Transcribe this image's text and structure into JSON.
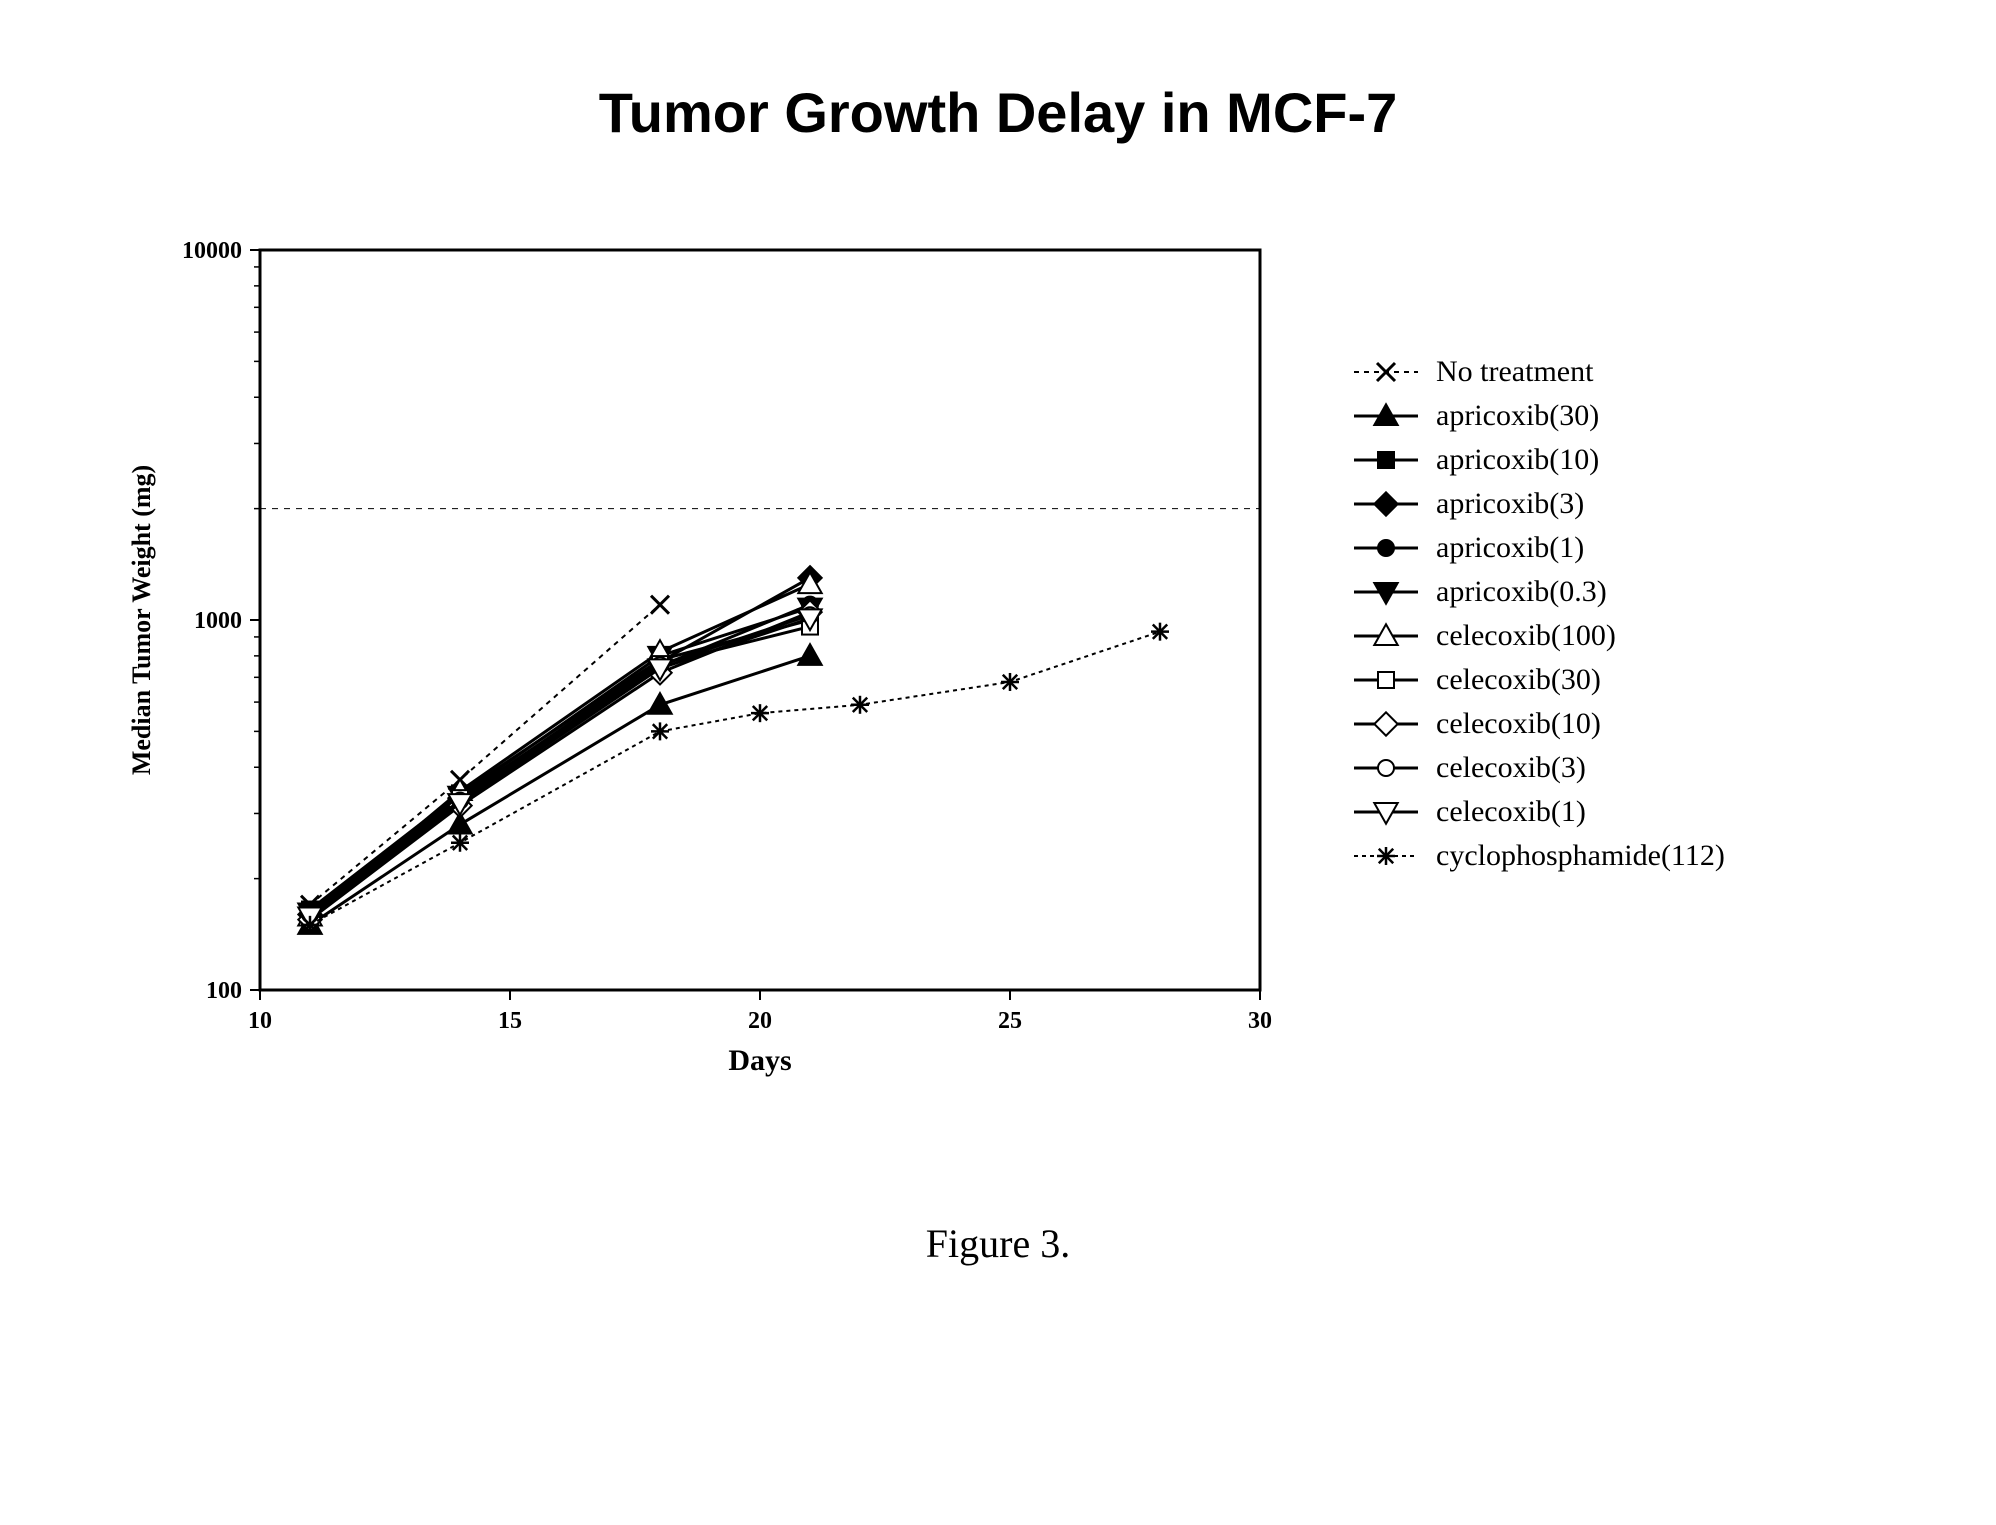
{
  "title": "Tumor Growth Delay in MCF-7",
  "figcaption": "Figure 3.",
  "chart": {
    "type": "line",
    "background_color": "#ffffff",
    "frame_color": "#000000",
    "frame_width": 3,
    "tick_len": 10,
    "reference_line": {
      "y": 2000,
      "dash": "6,6",
      "color": "#000000",
      "width": 1
    },
    "x": {
      "label": "Days",
      "label_fontsize": 30,
      "min": 10,
      "max": 30,
      "ticks": [
        10,
        15,
        20,
        25,
        30
      ],
      "tick_fontsize": 24
    },
    "y": {
      "label": "Median Tumor Weight (mg)",
      "label_fontsize": 26,
      "scale": "log",
      "min": 100,
      "max": 10000,
      "ticks": [
        100,
        1000,
        10000
      ],
      "tick_labels": [
        "100",
        "1000",
        "10000"
      ],
      "tick_fontsize": 24
    },
    "series": [
      {
        "name": "No treatment",
        "color": "#000000",
        "line_dash": "5,5",
        "line_width": 2,
        "marker": "x",
        "marker_fill": "#000000",
        "marker_size": 9,
        "x": [
          11,
          14,
          18
        ],
        "y": [
          170,
          370,
          1100
        ]
      },
      {
        "name": "apricoxib(30)",
        "color": "#000000",
        "line_dash": null,
        "line_width": 3,
        "marker": "triangle-up",
        "marker_fill": "#000000",
        "marker_size": 9,
        "x": [
          11,
          14,
          18,
          21
        ],
        "y": [
          150,
          280,
          590,
          800
        ]
      },
      {
        "name": "apricoxib(10)",
        "color": "#000000",
        "line_dash": null,
        "line_width": 3,
        "marker": "square",
        "marker_fill": "#000000",
        "marker_size": 8,
        "x": [
          11,
          14,
          18,
          21
        ],
        "y": [
          165,
          340,
          780,
          1000
        ]
      },
      {
        "name": "apricoxib(3)",
        "color": "#000000",
        "line_dash": null,
        "line_width": 3,
        "marker": "diamond",
        "marker_fill": "#000000",
        "marker_size": 9,
        "x": [
          11,
          14,
          18,
          21
        ],
        "y": [
          160,
          330,
          770,
          1300
        ]
      },
      {
        "name": "apricoxib(1)",
        "color": "#000000",
        "line_dash": null,
        "line_width": 3,
        "marker": "circle",
        "marker_fill": "#000000",
        "marker_size": 8,
        "x": [
          11,
          14,
          18,
          21
        ],
        "y": [
          160,
          320,
          750,
          1100
        ]
      },
      {
        "name": "apricoxib(0.3)",
        "color": "#000000",
        "line_dash": null,
        "line_width": 3,
        "marker": "triangle-down",
        "marker_fill": "#000000",
        "marker_size": 9,
        "x": [
          11,
          14,
          18,
          21
        ],
        "y": [
          162,
          335,
          800,
          1080
        ]
      },
      {
        "name": "celecoxib(100)",
        "color": "#000000",
        "line_dash": null,
        "line_width": 3,
        "marker": "triangle-up",
        "marker_fill": "#ffffff",
        "marker_size": 9,
        "x": [
          11,
          14,
          18,
          21
        ],
        "y": [
          158,
          345,
          820,
          1250
        ]
      },
      {
        "name": "celecoxib(30)",
        "color": "#000000",
        "line_dash": null,
        "line_width": 3,
        "marker": "square",
        "marker_fill": "#ffffff",
        "marker_size": 8,
        "x": [
          11,
          14,
          18,
          21
        ],
        "y": [
          160,
          330,
          760,
          960
        ]
      },
      {
        "name": "celecoxib(10)",
        "color": "#000000",
        "line_dash": null,
        "line_width": 3,
        "marker": "diamond",
        "marker_fill": "#ffffff",
        "marker_size": 9,
        "x": [
          11,
          14,
          18,
          21
        ],
        "y": [
          155,
          315,
          720,
          1050
        ]
      },
      {
        "name": "celecoxib(3)",
        "color": "#000000",
        "line_dash": null,
        "line_width": 3,
        "marker": "circle",
        "marker_fill": "#ffffff",
        "marker_size": 8,
        "x": [
          11,
          14,
          18,
          21
        ],
        "y": [
          160,
          325,
          755,
          1030
        ]
      },
      {
        "name": "celecoxib(1)",
        "color": "#000000",
        "line_dash": null,
        "line_width": 3,
        "marker": "triangle-down",
        "marker_fill": "#ffffff",
        "marker_size": 9,
        "x": [
          11,
          14,
          18,
          21
        ],
        "y": [
          158,
          320,
          740,
          1010
        ]
      },
      {
        "name": "cyclophosphamide(112)",
        "color": "#000000",
        "line_dash": "4,4",
        "line_width": 2,
        "marker": "asterisk",
        "marker_fill": "#000000",
        "marker_size": 9,
        "x": [
          11,
          14,
          18,
          20,
          22,
          25,
          28
        ],
        "y": [
          150,
          250,
          500,
          560,
          590,
          680,
          930
        ]
      }
    ]
  },
  "legend": {
    "fontsize": 30,
    "swatch_line_len": 60
  }
}
